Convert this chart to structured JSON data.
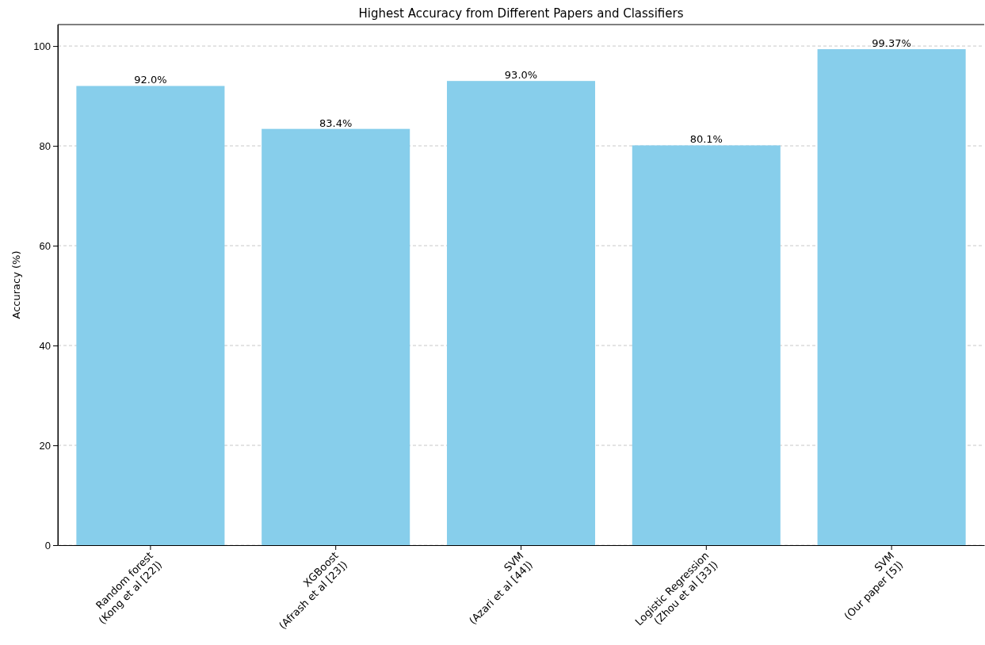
{
  "chart_data": {
    "type": "bar",
    "title": "Highest Accuracy from Different Papers and Classifiers",
    "ylabel": "Accuracy (%)",
    "categories": [
      "Random forest\n(Kong et al [22])",
      "XGBoost\n(Afrash et al [23])",
      "SVM\n(Azari et al [44])",
      "Logistic Regression\n(Zhou et al [33])",
      "SVM\n(Our paper [5])"
    ],
    "values": [
      92.0,
      83.4,
      93.0,
      80.1,
      99.37
    ],
    "value_labels": [
      "92.0%",
      "83.4%",
      "93.0%",
      "80.1%",
      "99.37%"
    ],
    "color": "#87ceeb",
    "ylim": [
      0,
      104.3
    ],
    "yticks": [
      0,
      20,
      40,
      60,
      80,
      100
    ],
    "grid": "y"
  }
}
